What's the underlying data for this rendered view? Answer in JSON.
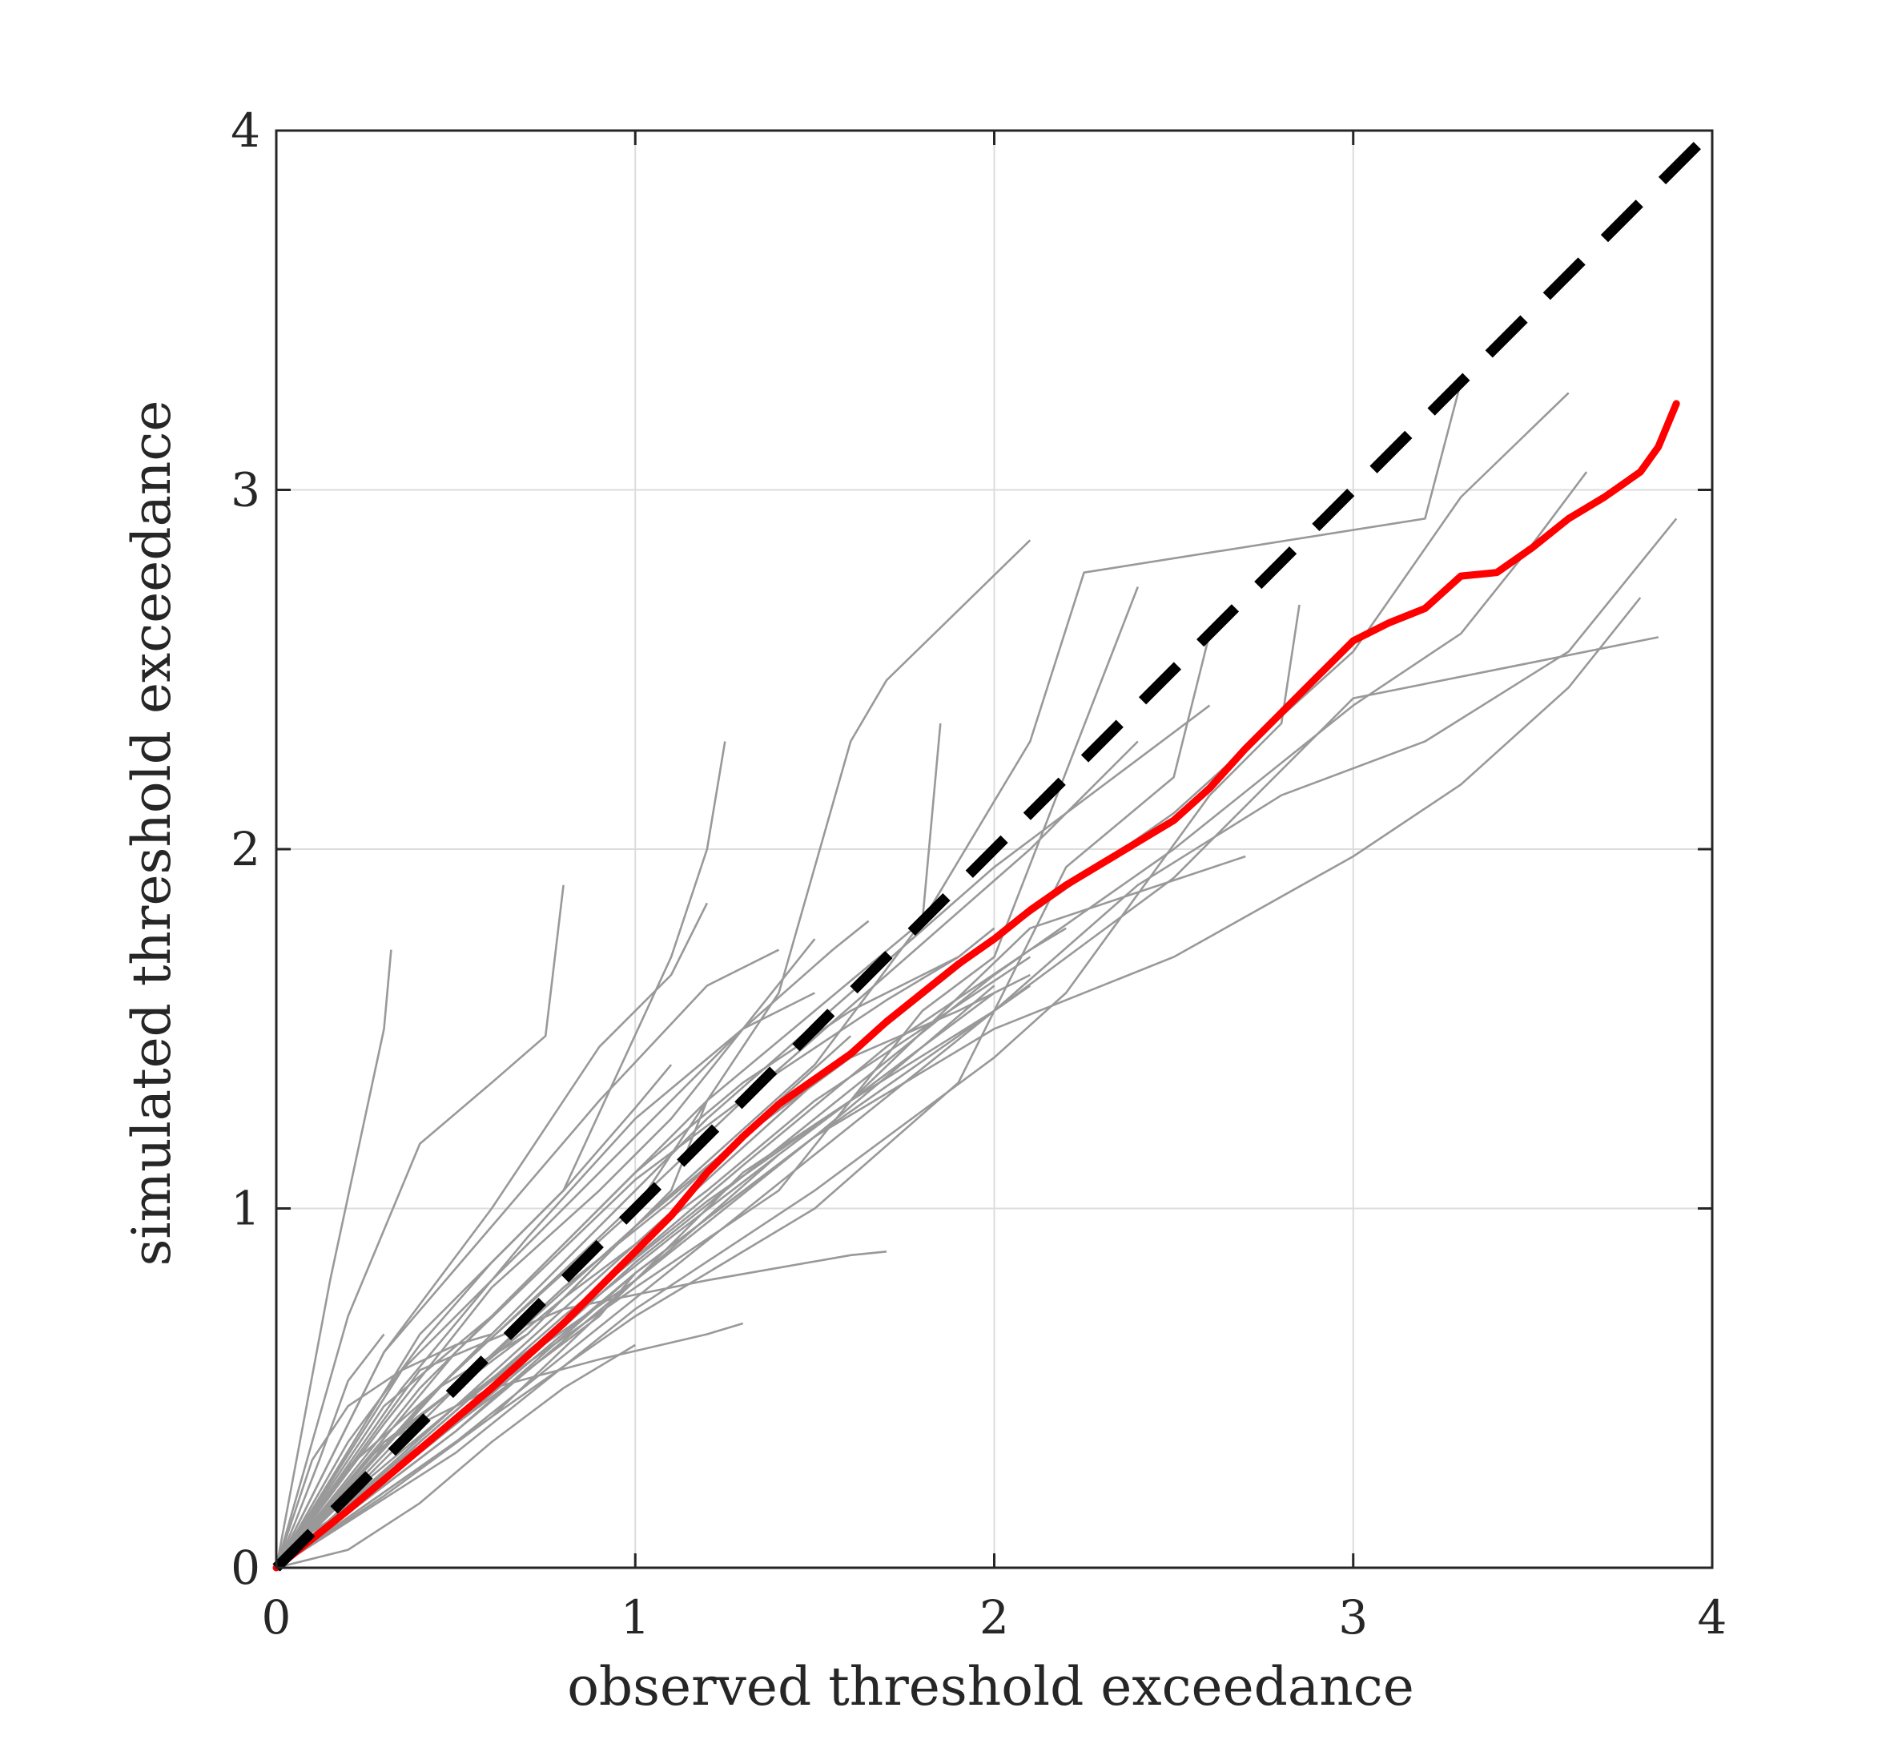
{
  "chart_data": {
    "type": "line",
    "title": "",
    "xlabel": "observed threshold exceedance",
    "ylabel": "simulated threshold exceedance",
    "xlim": [
      0,
      4
    ],
    "ylim": [
      0,
      4
    ],
    "xticks": [
      0,
      1,
      2,
      3,
      4
    ],
    "yticks": [
      0,
      1,
      2,
      3,
      4
    ],
    "x_tick_labels": [
      "0",
      "1",
      "2",
      "3",
      "4"
    ],
    "y_tick_labels": [
      "0",
      "1",
      "2",
      "3",
      "4"
    ],
    "grid": true,
    "legend": "none",
    "colors": {
      "ensemble": "#999999",
      "mean": "#ff0000",
      "reference": "#000000",
      "grid": "#dcdcdc",
      "axes": "#262626"
    },
    "series": [
      {
        "role": "reference",
        "style": "dashed",
        "x": [
          0,
          4
        ],
        "y": [
          0,
          4
        ]
      },
      {
        "role": "mean",
        "style": "solid",
        "x": [
          0,
          0.2,
          0.4,
          0.6,
          0.8,
          1.0,
          1.1,
          1.2,
          1.3,
          1.4,
          1.5,
          1.6,
          1.7,
          1.8,
          1.9,
          2.0,
          2.1,
          2.2,
          2.3,
          2.4,
          2.5,
          2.6,
          2.7,
          2.8,
          2.9,
          3.0,
          3.1,
          3.2,
          3.3,
          3.4,
          3.5,
          3.6,
          3.7,
          3.8,
          3.85,
          3.9
        ],
        "y": [
          0,
          0.16,
          0.33,
          0.5,
          0.68,
          0.88,
          0.98,
          1.1,
          1.2,
          1.29,
          1.36,
          1.43,
          1.52,
          1.6,
          1.68,
          1.75,
          1.83,
          1.9,
          1.96,
          2.02,
          2.08,
          2.17,
          2.28,
          2.38,
          2.48,
          2.58,
          2.63,
          2.67,
          2.76,
          2.77,
          2.84,
          2.92,
          2.98,
          3.05,
          3.12,
          3.24
        ]
      },
      {
        "role": "ensemble",
        "x": [
          0,
          0.15,
          0.3,
          0.32
        ],
        "y": [
          0,
          0.8,
          1.5,
          1.72
        ]
      },
      {
        "role": "ensemble",
        "x": [
          0,
          0.2,
          0.4,
          0.6,
          0.75,
          0.8
        ],
        "y": [
          0,
          0.7,
          1.18,
          1.35,
          1.48,
          1.9
        ]
      },
      {
        "role": "ensemble",
        "x": [
          0,
          0.3,
          0.6,
          0.9,
          1.1,
          1.2
        ],
        "y": [
          0,
          0.6,
          1.0,
          1.45,
          1.65,
          1.85
        ]
      },
      {
        "role": "ensemble",
        "x": [
          0,
          0.4,
          0.8,
          1.1,
          1.2,
          1.25
        ],
        "y": [
          0,
          0.65,
          1.05,
          1.7,
          2.0,
          2.3
        ]
      },
      {
        "role": "ensemble",
        "x": [
          0,
          0.5,
          1.0,
          1.4,
          1.6,
          1.7,
          2.1
        ],
        "y": [
          0,
          0.55,
          1.0,
          1.6,
          2.3,
          2.47,
          2.86
        ]
      },
      {
        "role": "ensemble",
        "x": [
          0,
          0.5,
          1.0,
          1.5,
          1.8,
          2.1,
          2.25,
          3.2,
          3.3
        ],
        "y": [
          0,
          0.5,
          0.95,
          1.4,
          1.8,
          2.3,
          2.77,
          2.92,
          3.3
        ]
      },
      {
        "role": "ensemble",
        "x": [
          0,
          0.5,
          1.0,
          1.5,
          2.0,
          2.5,
          3.0,
          3.3,
          3.6
        ],
        "y": [
          0,
          0.45,
          0.9,
          1.35,
          1.75,
          2.1,
          2.55,
          2.98,
          3.27
        ]
      },
      {
        "role": "ensemble",
        "x": [
          0,
          0.5,
          1.0,
          1.5,
          2.0,
          2.5,
          3.0,
          3.3,
          3.5,
          3.65
        ],
        "y": [
          0,
          0.4,
          0.85,
          1.25,
          1.65,
          2.0,
          2.4,
          2.6,
          2.85,
          3.05
        ]
      },
      {
        "role": "ensemble",
        "x": [
          0,
          0.5,
          1.0,
          1.5,
          2.0,
          2.4,
          2.8,
          3.2,
          3.6,
          3.9
        ],
        "y": [
          0,
          0.35,
          0.75,
          1.15,
          1.55,
          1.9,
          2.15,
          2.3,
          2.55,
          2.92
        ]
      },
      {
        "role": "ensemble",
        "x": [
          0,
          0.5,
          1.0,
          1.5,
          2.0,
          2.5,
          3.0,
          3.3,
          3.6,
          3.8
        ],
        "y": [
          0,
          0.38,
          0.8,
          1.2,
          1.5,
          1.7,
          1.98,
          2.18,
          2.45,
          2.7
        ]
      },
      {
        "role": "ensemble",
        "x": [
          0,
          0.5,
          1.0,
          1.5,
          2.0,
          2.5,
          3.0,
          3.5,
          3.85
        ],
        "y": [
          0,
          0.4,
          0.82,
          1.2,
          1.55,
          1.92,
          2.42,
          2.52,
          2.59
        ]
      },
      {
        "role": "ensemble",
        "x": [
          0,
          0.5,
          1.0,
          1.5,
          2.0,
          2.2,
          2.6,
          2.8,
          2.85
        ],
        "y": [
          0,
          0.32,
          0.72,
          1.05,
          1.42,
          1.6,
          2.15,
          2.35,
          2.68
        ]
      },
      {
        "role": "ensemble",
        "x": [
          0,
          0.5,
          1.0,
          1.3,
          1.6,
          2.1,
          2.7
        ],
        "y": [
          0,
          0.45,
          0.8,
          1.1,
          1.3,
          1.78,
          1.98
        ]
      },
      {
        "role": "ensemble",
        "x": [
          0,
          0.5,
          1.0,
          1.5,
          1.9,
          2.2,
          2.5,
          2.6
        ],
        "y": [
          0,
          0.35,
          0.7,
          1.0,
          1.35,
          1.95,
          2.2,
          2.6
        ]
      },
      {
        "role": "ensemble",
        "x": [
          0,
          0.6,
          1.0,
          1.4,
          1.8,
          2.0,
          2.4
        ],
        "y": [
          0,
          0.5,
          0.78,
          1.05,
          1.55,
          1.7,
          2.73
        ]
      },
      {
        "role": "ensemble",
        "x": [
          0,
          0.4,
          0.8,
          1.2,
          1.6,
          1.7
        ],
        "y": [
          0,
          0.55,
          0.72,
          0.8,
          0.87,
          0.88
        ]
      },
      {
        "role": "ensemble",
        "x": [
          0,
          0.3,
          0.6,
          0.9,
          1.2,
          1.3
        ],
        "y": [
          0,
          0.35,
          0.5,
          0.58,
          0.65,
          0.68
        ]
      },
      {
        "role": "ensemble",
        "x": [
          0,
          0.2,
          0.45,
          0.7,
          0.9,
          1.1,
          1.2
        ],
        "y": [
          0,
          0.28,
          0.5,
          0.65,
          0.85,
          1.05,
          1.3
        ]
      },
      {
        "role": "ensemble",
        "x": [
          0,
          0.3,
          0.6,
          0.9,
          1.2,
          1.5,
          1.8,
          1.85
        ],
        "y": [
          0,
          0.45,
          0.7,
          1.0,
          1.3,
          1.55,
          1.8,
          2.35
        ]
      },
      {
        "role": "ensemble",
        "x": [
          0,
          0.35,
          0.7,
          1.0,
          1.3,
          1.55,
          1.65
        ],
        "y": [
          0,
          0.55,
          0.9,
          1.2,
          1.5,
          1.72,
          1.8
        ]
      },
      {
        "role": "ensemble",
        "x": [
          0,
          0.4,
          0.7,
          1.0,
          1.3,
          1.6,
          1.9
        ],
        "y": [
          0,
          0.5,
          0.8,
          1.1,
          1.35,
          1.55,
          1.7
        ]
      },
      {
        "role": "ensemble",
        "x": [
          0,
          0.4,
          0.8,
          1.2,
          1.5,
          1.8,
          2.1
        ],
        "y": [
          0,
          0.42,
          0.75,
          1.05,
          1.3,
          1.5,
          1.7
        ]
      },
      {
        "role": "ensemble",
        "x": [
          0,
          0.3,
          0.7,
          1.0,
          1.3,
          1.6,
          1.9,
          2.1
        ],
        "y": [
          0,
          0.35,
          0.65,
          0.95,
          1.2,
          1.42,
          1.55,
          1.65
        ]
      },
      {
        "role": "ensemble",
        "x": [
          0,
          0.3,
          0.6,
          0.9,
          1.2,
          1.4
        ],
        "y": [
          0,
          0.6,
          0.95,
          1.3,
          1.62,
          1.72
        ]
      },
      {
        "role": "ensemble",
        "x": [
          0,
          0.3,
          0.6,
          0.9,
          1.1,
          1.3,
          1.5
        ],
        "y": [
          0,
          0.4,
          0.78,
          1.05,
          1.25,
          1.5,
          1.75
        ]
      },
      {
        "role": "ensemble",
        "x": [
          0,
          0.25,
          0.5,
          0.8,
          1.1,
          1.4,
          1.6
        ],
        "y": [
          0,
          0.3,
          0.5,
          0.78,
          1.02,
          1.3,
          1.48
        ]
      },
      {
        "role": "ensemble",
        "x": [
          0,
          0.3,
          0.5,
          0.7,
          0.9,
          1.0
        ],
        "y": [
          0,
          0.25,
          0.4,
          0.55,
          0.7,
          0.82
        ]
      },
      {
        "role": "ensemble",
        "x": [
          0,
          0.4,
          0.8,
          1.2,
          1.6,
          2.0,
          2.1
        ],
        "y": [
          0,
          0.35,
          0.7,
          1.02,
          1.3,
          1.55,
          1.62
        ]
      },
      {
        "role": "ensemble",
        "x": [
          0,
          0.5,
          0.9,
          1.3,
          1.7,
          2.1,
          2.2
        ],
        "y": [
          0,
          0.42,
          0.78,
          1.12,
          1.45,
          1.72,
          1.78
        ]
      },
      {
        "role": "ensemble",
        "x": [
          0,
          0.1,
          0.2,
          0.35,
          0.5,
          0.6
        ],
        "y": [
          0,
          0.3,
          0.45,
          0.55,
          0.62,
          0.65
        ]
      },
      {
        "role": "ensemble",
        "x": [
          0,
          0.1,
          0.25,
          0.4,
          0.55,
          0.7
        ],
        "y": [
          0,
          0.1,
          0.2,
          0.35,
          0.48,
          0.6
        ]
      },
      {
        "role": "ensemble",
        "x": [
          0,
          0.2,
          0.4,
          0.6,
          0.8,
          1.0
        ],
        "y": [
          0,
          0.05,
          0.18,
          0.35,
          0.5,
          0.62
        ]
      },
      {
        "role": "ensemble",
        "x": [
          0,
          0.05,
          0.12,
          0.2,
          0.3
        ],
        "y": [
          0,
          0.12,
          0.3,
          0.52,
          0.65
        ]
      },
      {
        "role": "ensemble",
        "x": [
          0,
          0.4,
          0.8,
          1.2,
          1.6,
          2.0,
          2.4,
          2.6
        ],
        "y": [
          0,
          0.45,
          0.85,
          1.25,
          1.6,
          1.95,
          2.25,
          2.4
        ]
      },
      {
        "role": "ensemble",
        "x": [
          0,
          0.45,
          0.9,
          1.3,
          1.7,
          2.1,
          2.4
        ],
        "y": [
          0,
          0.5,
          0.92,
          1.3,
          1.65,
          2.0,
          2.3
        ]
      },
      {
        "role": "ensemble",
        "x": [
          0,
          0.35,
          0.7,
          1.0,
          1.3,
          1.5
        ],
        "y": [
          0,
          0.5,
          0.92,
          1.25,
          1.5,
          1.6
        ]
      },
      {
        "role": "ensemble",
        "x": [
          0,
          0.2,
          0.4,
          0.6,
          0.8,
          1.0,
          1.1
        ],
        "y": [
          0,
          0.35,
          0.62,
          0.85,
          1.05,
          1.28,
          1.4
        ]
      },
      {
        "role": "ensemble",
        "x": [
          0,
          0.2,
          0.5,
          0.8,
          1.1,
          1.4
        ],
        "y": [
          0,
          0.2,
          0.45,
          0.68,
          0.92,
          1.15
        ]
      },
      {
        "role": "ensemble",
        "x": [
          0,
          0.3,
          0.6,
          1.0,
          1.4,
          1.8,
          2.0
        ],
        "y": [
          0,
          0.2,
          0.42,
          0.8,
          1.15,
          1.45,
          1.6
        ]
      },
      {
        "role": "ensemble",
        "x": [
          0,
          0.5,
          1.0,
          1.5,
          1.8,
          2.0
        ],
        "y": [
          0,
          0.38,
          0.82,
          1.2,
          1.45,
          1.62
        ]
      },
      {
        "role": "ensemble",
        "x": [
          0,
          0.5,
          1.0,
          1.4,
          1.7,
          1.9,
          2.0
        ],
        "y": [
          0,
          0.6,
          1.08,
          1.38,
          1.58,
          1.7,
          1.78
        ]
      }
    ]
  }
}
